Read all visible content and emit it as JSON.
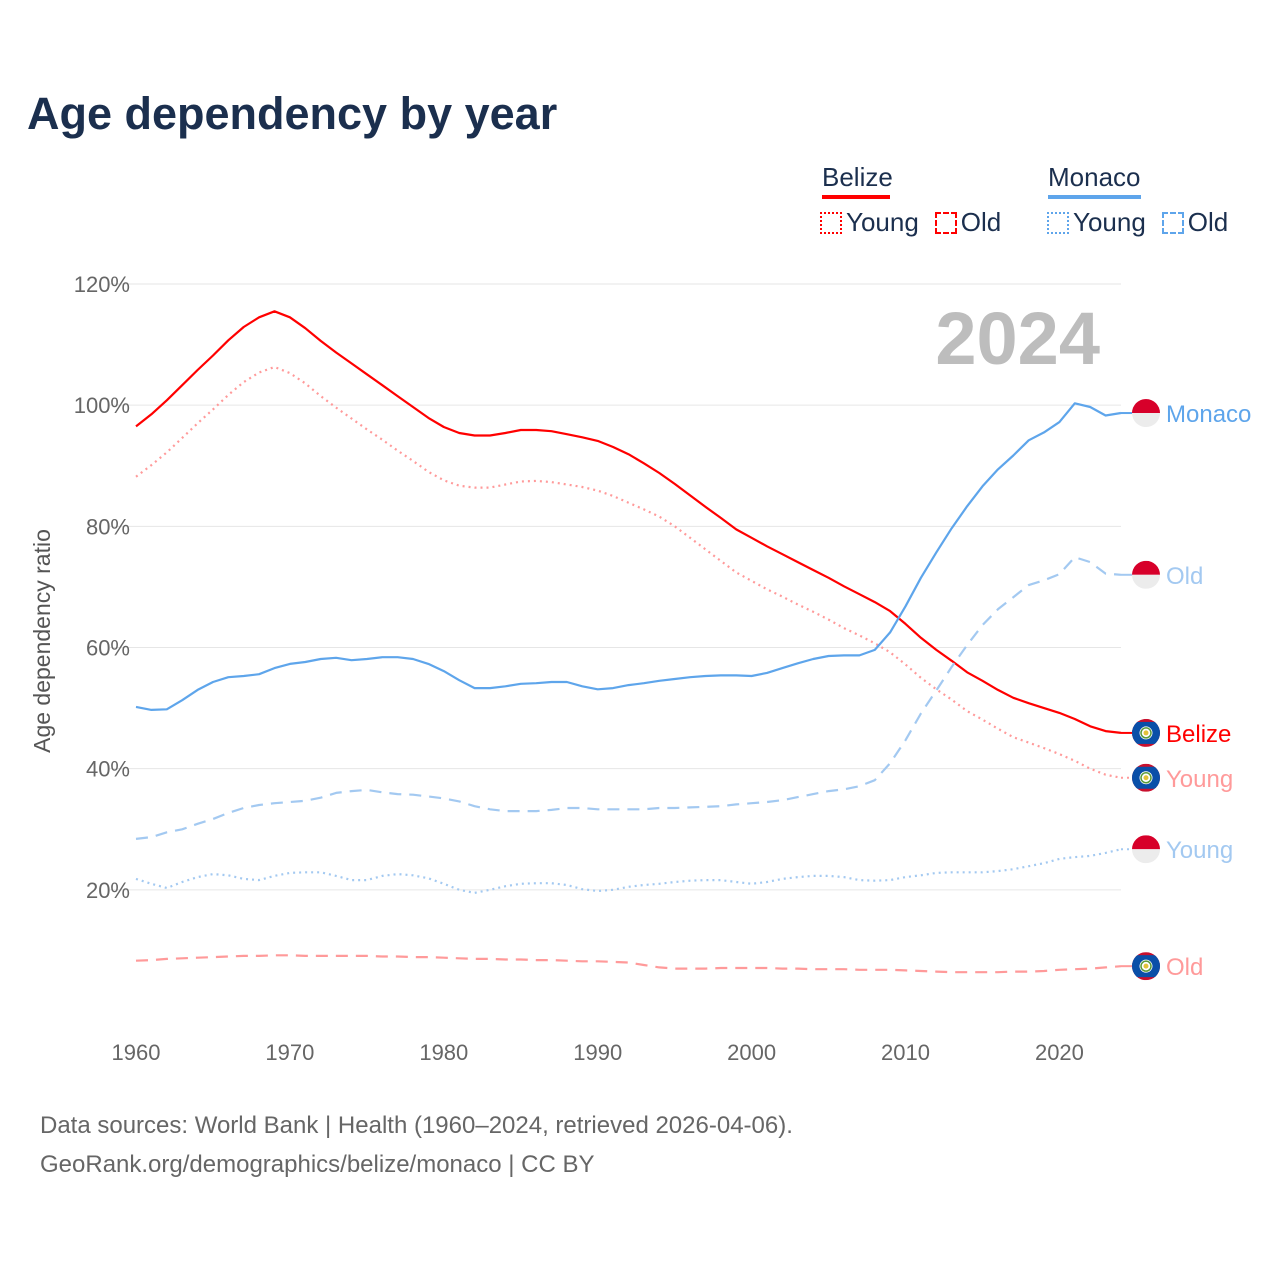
{
  "title": "Age dependency by year",
  "legend": {
    "groups": [
      {
        "name": "Belize",
        "color": "#ff0000",
        "light": "#ff0000",
        "items": [
          "Young",
          "Old"
        ]
      },
      {
        "name": "Monaco",
        "color": "#5ea5eb",
        "light": "#5ea5eb",
        "items": [
          "Young",
          "Old"
        ]
      }
    ]
  },
  "year_label": "2024",
  "sources": {
    "line1": "Data sources: World Bank | Health (1960–2024, retrieved 2026-04-06).",
    "line2": "GeoRank.org/demographics/belize/monaco | CC BY"
  },
  "chart_data": {
    "type": "line",
    "title": "Age dependency by year",
    "xlabel": "",
    "ylabel": "Age dependency ratio",
    "xlim": [
      1960,
      2024
    ],
    "ylim": [
      0,
      120
    ],
    "x_ticks": [
      "1960",
      "1970",
      "1980",
      "1990",
      "2000",
      "2010",
      "2020"
    ],
    "y_ticks": [
      "20%",
      "40%",
      "60%",
      "80%",
      "100%",
      "120%"
    ],
    "y_tick_values": [
      20,
      40,
      60,
      80,
      100,
      120
    ],
    "grid": true,
    "x_start": 1960,
    "series": [
      {
        "name": "Belize",
        "label": "Belize",
        "country": "belize",
        "style": "solid",
        "color": "#ff0000",
        "values": [
          96.5,
          98.5,
          100.8,
          103.3,
          105.8,
          108.2,
          110.7,
          112.9,
          114.5,
          115.5,
          114.5,
          112.7,
          110.6,
          108.7,
          106.9,
          105.1,
          103.3,
          101.5,
          99.7,
          97.9,
          96.4,
          95.4,
          95.0,
          95.0,
          95.4,
          95.9,
          95.9,
          95.7,
          95.2,
          94.7,
          94.1,
          93.1,
          91.9,
          90.4,
          88.8,
          87.0,
          85.1,
          83.2,
          81.4,
          79.5,
          78.1,
          76.7,
          75.4,
          74.1,
          72.8,
          71.5,
          70.1,
          68.8,
          67.5,
          66.0,
          63.9,
          61.6,
          59.6,
          57.8,
          55.9,
          54.5,
          53.0,
          51.7,
          50.8,
          50.0,
          49.2,
          48.2,
          47.0,
          46.2,
          45.9
        ]
      },
      {
        "name": "Belize Young",
        "label": "Young",
        "country": "belize",
        "style": "dotted",
        "color": "#ff9a9a",
        "values": [
          88.2,
          90.1,
          92.2,
          94.6,
          97.0,
          99.3,
          101.7,
          103.8,
          105.4,
          106.3,
          105.3,
          103.6,
          101.5,
          99.6,
          97.8,
          96.0,
          94.3,
          92.5,
          90.8,
          89.0,
          87.6,
          86.7,
          86.4,
          86.4,
          86.9,
          87.4,
          87.5,
          87.3,
          86.9,
          86.5,
          85.9,
          85.0,
          83.9,
          82.8,
          81.6,
          80.0,
          78.1,
          76.2,
          74.3,
          72.4,
          71.0,
          69.6,
          68.4,
          67.1,
          65.9,
          64.6,
          63.2,
          62.0,
          60.7,
          59.2,
          57.2,
          55.0,
          53.1,
          51.4,
          49.5,
          48.1,
          46.6,
          45.2,
          44.3,
          43.4,
          42.4,
          41.3,
          40.0,
          39.0,
          38.5
        ]
      },
      {
        "name": "Belize Old",
        "label": "Old",
        "country": "belize",
        "style": "dashed",
        "color": "#ff9a9a",
        "values": [
          8.3,
          8.4,
          8.6,
          8.7,
          8.8,
          8.9,
          9.0,
          9.1,
          9.1,
          9.2,
          9.2,
          9.1,
          9.1,
          9.1,
          9.1,
          9.1,
          9.0,
          9.0,
          8.9,
          8.9,
          8.8,
          8.7,
          8.6,
          8.6,
          8.5,
          8.5,
          8.4,
          8.4,
          8.3,
          8.2,
          8.2,
          8.1,
          8.0,
          7.6,
          7.2,
          7.0,
          7.0,
          7.0,
          7.1,
          7.1,
          7.1,
          7.1,
          7.0,
          7.0,
          6.9,
          6.9,
          6.9,
          6.8,
          6.8,
          6.8,
          6.7,
          6.6,
          6.5,
          6.4,
          6.4,
          6.4,
          6.4,
          6.5,
          6.5,
          6.6,
          6.8,
          6.9,
          7.0,
          7.2,
          7.4
        ]
      },
      {
        "name": "Monaco",
        "label": "Monaco",
        "country": "monaco",
        "style": "solid",
        "color": "#5ea5eb",
        "values": [
          50.2,
          49.7,
          49.8,
          51.3,
          53.0,
          54.3,
          55.1,
          55.3,
          55.6,
          56.6,
          57.3,
          57.6,
          58.1,
          58.3,
          57.9,
          58.1,
          58.4,
          58.4,
          58.1,
          57.3,
          56.1,
          54.6,
          53.3,
          53.3,
          53.6,
          54.0,
          54.1,
          54.3,
          54.3,
          53.6,
          53.1,
          53.3,
          53.8,
          54.1,
          54.5,
          54.8,
          55.1,
          55.3,
          55.4,
          55.4,
          55.3,
          55.8,
          56.6,
          57.4,
          58.1,
          58.6,
          58.7,
          58.7,
          59.6,
          62.5,
          66.8,
          71.5,
          75.7,
          79.7,
          83.3,
          86.6,
          89.4,
          91.7,
          94.2,
          95.5,
          97.2,
          100.3,
          99.7,
          98.3,
          98.7
        ]
      },
      {
        "name": "Monaco Young",
        "label": "Young",
        "country": "monaco",
        "style": "dotted",
        "color": "#a3c9f1",
        "values": [
          21.8,
          21.0,
          20.3,
          21.3,
          22.1,
          22.6,
          22.4,
          21.8,
          21.6,
          22.3,
          22.8,
          22.9,
          22.9,
          22.3,
          21.6,
          21.6,
          22.3,
          22.6,
          22.4,
          21.9,
          21.0,
          20.0,
          19.5,
          20.0,
          20.6,
          21.0,
          21.1,
          21.1,
          20.8,
          20.1,
          19.8,
          20.0,
          20.5,
          20.8,
          21.0,
          21.3,
          21.5,
          21.6,
          21.6,
          21.3,
          21.0,
          21.3,
          21.8,
          22.1,
          22.3,
          22.3,
          22.1,
          21.6,
          21.5,
          21.6,
          22.1,
          22.4,
          22.8,
          22.9,
          22.9,
          22.9,
          23.1,
          23.4,
          23.9,
          24.4,
          25.1,
          25.4,
          25.6,
          26.1,
          26.7
        ]
      },
      {
        "name": "Monaco Old",
        "label": "Old",
        "country": "monaco",
        "style": "dashed",
        "color": "#a3c9f1",
        "values": [
          28.4,
          28.7,
          29.5,
          30.0,
          30.9,
          31.7,
          32.7,
          33.5,
          34.0,
          34.3,
          34.5,
          34.7,
          35.2,
          36.0,
          36.3,
          36.5,
          36.1,
          35.8,
          35.7,
          35.4,
          35.1,
          34.6,
          33.8,
          33.3,
          33.0,
          33.0,
          33.0,
          33.2,
          33.5,
          33.5,
          33.3,
          33.3,
          33.3,
          33.3,
          33.5,
          33.5,
          33.6,
          33.7,
          33.8,
          34.1,
          34.3,
          34.5,
          34.8,
          35.3,
          35.8,
          36.3,
          36.6,
          37.1,
          38.1,
          40.9,
          44.7,
          49.1,
          52.9,
          56.8,
          60.4,
          63.7,
          66.3,
          68.3,
          70.3,
          71.1,
          72.1,
          74.9,
          74.1,
          72.2,
          72.0
        ]
      }
    ]
  }
}
